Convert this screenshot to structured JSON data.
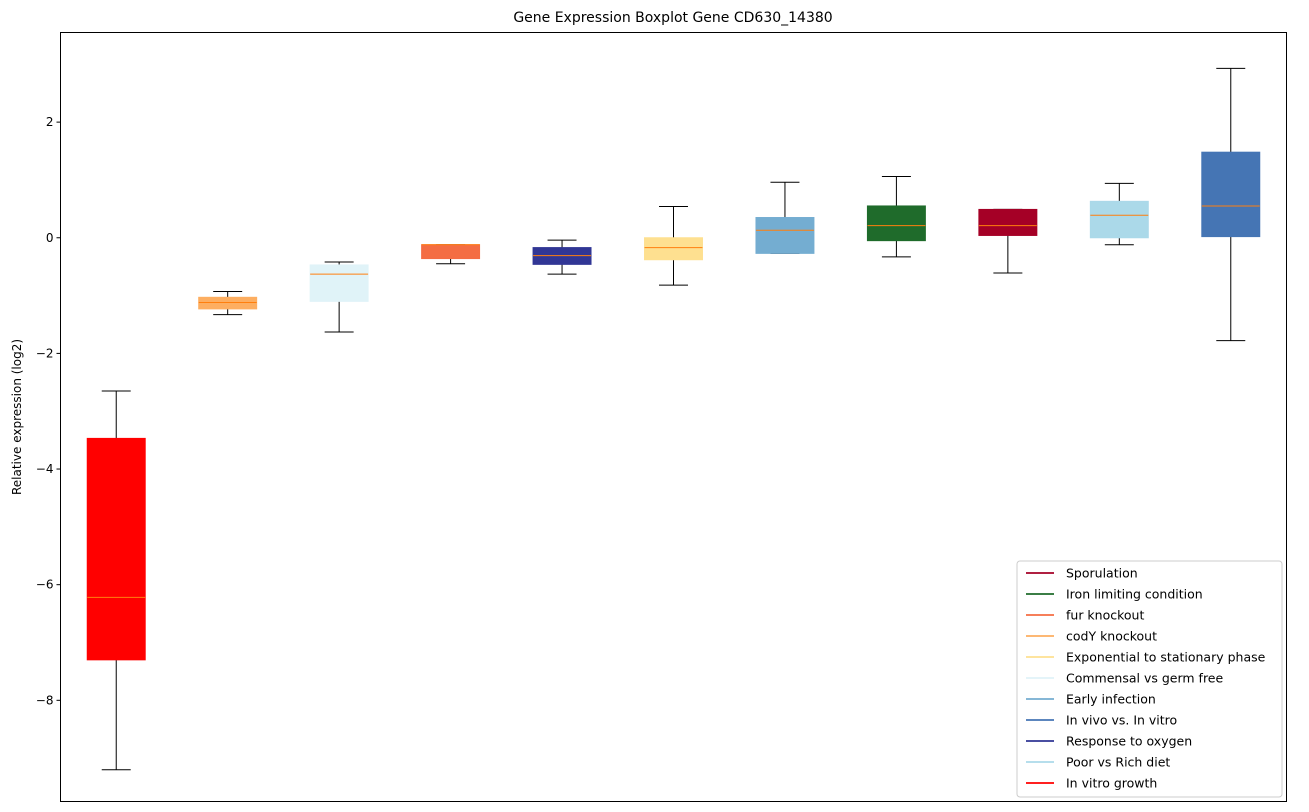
{
  "chart_data": {
    "type": "box",
    "title": "Gene Expression Boxplot Gene CD630_14380",
    "xlabel": "",
    "ylabel": "Relative expression (log2)",
    "ylim": [
      -9.75,
      3.55
    ],
    "yticks": [
      -8,
      -6,
      -4,
      -2,
      0,
      2
    ],
    "xticks_visible": false,
    "grid": false,
    "legend_position": "lower right",
    "median_color": "#ff7f0e",
    "whisker_color": "#000000",
    "boxes": [
      {
        "name": "In vitro growth",
        "color": "#ff0000",
        "whisker_low": -9.2,
        "q1": -7.3,
        "median": -6.22,
        "q3": -3.47,
        "whisker_high": -2.65
      },
      {
        "name": "codY knockout",
        "color": "#fdae61",
        "whisker_low": -1.33,
        "q1": -1.23,
        "median": -1.12,
        "q3": -1.03,
        "whisker_high": -0.93
      },
      {
        "name": "Commensal vs germ free",
        "color": "#e0f3f8",
        "whisker_low": -1.63,
        "q1": -1.1,
        "median": -0.63,
        "q3": -0.47,
        "whisker_high": -0.42
      },
      {
        "name": "fur knockout",
        "color": "#f46d43",
        "whisker_low": -0.45,
        "q1": -0.36,
        "median": -0.12,
        "q3": -0.12,
        "whisker_high": -0.12
      },
      {
        "name": "Response to oxygen",
        "color": "#313695",
        "whisker_low": -0.63,
        "q1": -0.46,
        "median": -0.31,
        "q3": -0.17,
        "whisker_high": -0.04
      },
      {
        "name": "Exponential to stationary phase",
        "color": "#fee090",
        "whisker_low": -0.82,
        "q1": -0.38,
        "median": -0.17,
        "q3": 0.0,
        "whisker_high": 0.54
      },
      {
        "name": "Early infection",
        "color": "#74add1",
        "whisker_low": -0.27,
        "q1": -0.27,
        "median": 0.13,
        "q3": 0.35,
        "whisker_high": 0.96
      },
      {
        "name": "Iron limiting condition",
        "color": "#1f6b2b",
        "whisker_low": -0.33,
        "q1": -0.05,
        "median": 0.21,
        "q3": 0.55,
        "whisker_high": 1.06
      },
      {
        "name": "Sporulation",
        "color": "#a50026",
        "whisker_low": -0.61,
        "q1": 0.04,
        "median": 0.21,
        "q3": 0.49,
        "whisker_high": 0.49
      },
      {
        "name": "Poor vs Rich diet",
        "color": "#abd9e9",
        "whisker_low": -0.12,
        "q1": 0.0,
        "median": 0.39,
        "q3": 0.63,
        "whisker_high": 0.94
      },
      {
        "name": "In vivo vs. In vitro",
        "color": "#4575b4",
        "whisker_low": -1.78,
        "q1": 0.02,
        "median": 0.55,
        "q3": 1.48,
        "whisker_high": 2.93
      }
    ],
    "legend": [
      {
        "label": "Sporulation",
        "color": "#a50026"
      },
      {
        "label": "Iron limiting condition",
        "color": "#1f6b2b"
      },
      {
        "label": "fur knockout",
        "color": "#f46d43"
      },
      {
        "label": "codY knockout",
        "color": "#fdae61"
      },
      {
        "label": "Exponential to stationary phase",
        "color": "#fee090"
      },
      {
        "label": "Commensal vs germ free",
        "color": "#e0f3f8"
      },
      {
        "label": "Early infection",
        "color": "#74add1"
      },
      {
        "label": "In vivo vs. In vitro",
        "color": "#4575b4"
      },
      {
        "label": "Response to oxygen",
        "color": "#313695"
      },
      {
        "label": "Poor vs Rich diet",
        "color": "#abd9e9"
      },
      {
        "label": "In vitro growth",
        "color": "#ff0000"
      }
    ]
  }
}
